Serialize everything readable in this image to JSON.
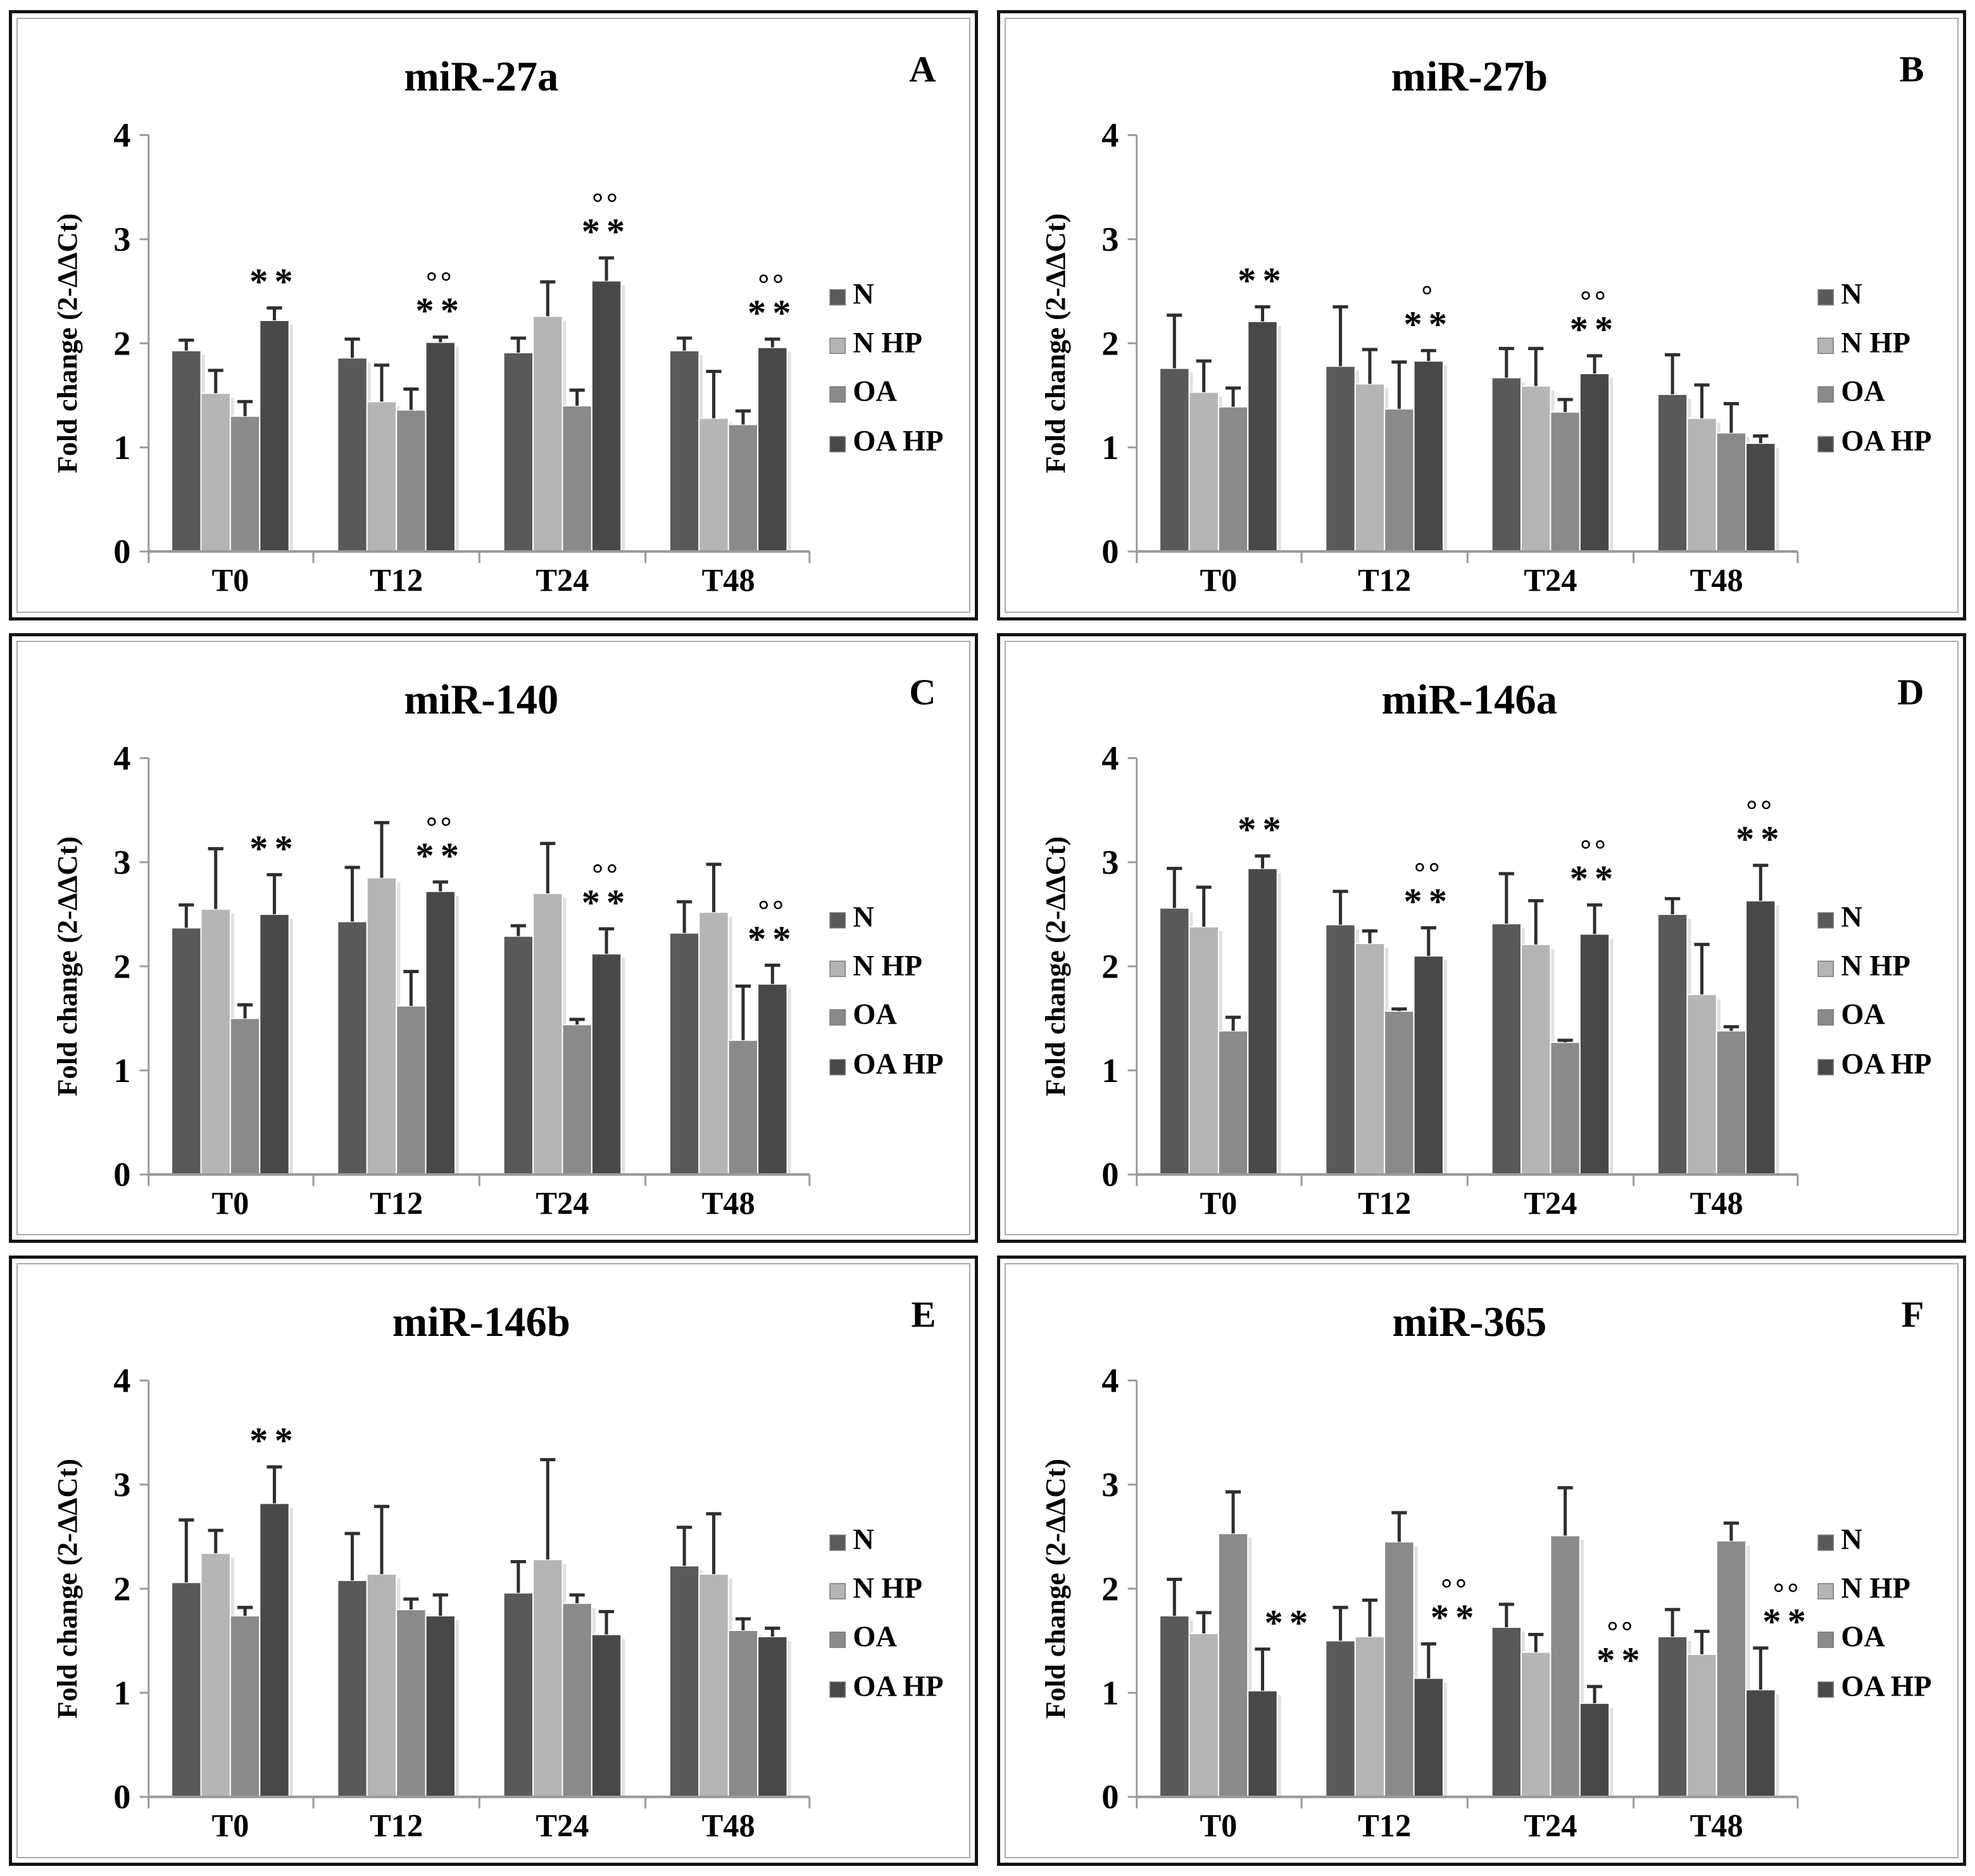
{
  "figure": {
    "ylabel": "Fold change (2-ΔΔCt)",
    "ylim": [
      0,
      4
    ],
    "yticks": [
      "0",
      "1",
      "2",
      "3",
      "4"
    ],
    "categories": [
      "T0",
      "T12",
      "T24",
      "T48"
    ],
    "legend": [
      "N",
      "N HP",
      "OA",
      "OA HP"
    ],
    "styles": {
      "series_colors": {
        "N": "#595959",
        "N HP": "#b5b5b5",
        "OA": "#8a8a8a",
        "OA HP": "#484848"
      },
      "error_color": "#2e2e2e",
      "axis_color": "#9b9b9b",
      "stars_color": "#858585",
      "circles_color": "#141414",
      "shadow_color": "#cdcdcd",
      "panel_background": "#ffffff"
    }
  },
  "chart_data": [
    {
      "type": "bar",
      "panel_letter": "A",
      "title": "miR-27a",
      "xlabel": "",
      "ylabel": "Fold change (2-ΔΔCt)",
      "ylim": [
        0,
        4
      ],
      "categories": [
        "T0",
        "T12",
        "T24",
        "T48"
      ],
      "legend_position": "right",
      "grid": false,
      "series": [
        {
          "name": "N",
          "color": "#595959",
          "values": [
            1.93,
            1.86,
            1.91,
            1.93
          ],
          "errors": [
            0.1,
            0.18,
            0.14,
            0.12
          ]
        },
        {
          "name": "N HP",
          "color": "#b5b5b5",
          "values": [
            1.52,
            1.44,
            2.26,
            1.28
          ],
          "errors": [
            0.22,
            0.35,
            0.33,
            0.45
          ]
        },
        {
          "name": "OA",
          "color": "#8a8a8a",
          "values": [
            1.3,
            1.36,
            1.4,
            1.22
          ],
          "errors": [
            0.14,
            0.2,
            0.15,
            0.13
          ]
        },
        {
          "name": "OA HP",
          "color": "#484848",
          "values": [
            2.22,
            2.01,
            2.6,
            1.96
          ],
          "errors": [
            0.12,
            0.05,
            0.22,
            0.08
          ]
        }
      ],
      "annotations": [
        {
          "category": "T0",
          "series": "OA HP",
          "circles": "",
          "stars": "**"
        },
        {
          "category": "T12",
          "series": "OA HP",
          "circles": "°°",
          "stars": "**"
        },
        {
          "category": "T24",
          "series": "OA HP",
          "circles": "°°",
          "stars": "**"
        },
        {
          "category": "T48",
          "series": "OA HP",
          "circles": "°°",
          "stars": "**"
        }
      ],
      "sig_dx": 0
    },
    {
      "type": "bar",
      "panel_letter": "B",
      "title": "miR-27b",
      "xlabel": "",
      "ylabel": "Fold change (2-ΔΔCt)",
      "ylim": [
        0,
        4
      ],
      "categories": [
        "T0",
        "T12",
        "T24",
        "T48"
      ],
      "legend_position": "right",
      "grid": false,
      "series": [
        {
          "name": "N",
          "color": "#595959",
          "values": [
            1.76,
            1.78,
            1.67,
            1.51
          ],
          "errors": [
            0.51,
            0.57,
            0.28,
            0.38
          ]
        },
        {
          "name": "N HP",
          "color": "#b5b5b5",
          "values": [
            1.53,
            1.61,
            1.59,
            1.28
          ],
          "errors": [
            0.3,
            0.33,
            0.36,
            0.32
          ]
        },
        {
          "name": "OA",
          "color": "#8a8a8a",
          "values": [
            1.39,
            1.37,
            1.34,
            1.14
          ],
          "errors": [
            0.18,
            0.45,
            0.12,
            0.28
          ]
        },
        {
          "name": "OA HP",
          "color": "#484848",
          "values": [
            2.21,
            1.83,
            1.71,
            1.04
          ],
          "errors": [
            0.14,
            0.1,
            0.17,
            0.07
          ]
        }
      ],
      "annotations": [
        {
          "category": "T0",
          "series": "OA HP",
          "circles": "",
          "stars": "**"
        },
        {
          "category": "T12",
          "series": "OA HP",
          "circles": "°",
          "stars": "**"
        },
        {
          "category": "T24",
          "series": "OA HP",
          "circles": "°°",
          "stars": "**"
        }
      ],
      "sig_dx": 0
    },
    {
      "type": "bar",
      "panel_letter": "C",
      "title": "miR-140",
      "xlabel": "",
      "ylabel": "Fold change (2-ΔΔCt)",
      "ylim": [
        0,
        4
      ],
      "categories": [
        "T0",
        "T12",
        "T24",
        "T48"
      ],
      "legend_position": "right",
      "grid": false,
      "series": [
        {
          "name": "N",
          "color": "#595959",
          "values": [
            2.37,
            2.43,
            2.29,
            2.32
          ],
          "errors": [
            0.22,
            0.52,
            0.1,
            0.3
          ]
        },
        {
          "name": "N HP",
          "color": "#b5b5b5",
          "values": [
            2.55,
            2.85,
            2.7,
            2.52
          ],
          "errors": [
            0.58,
            0.53,
            0.48,
            0.46
          ]
        },
        {
          "name": "OA",
          "color": "#8a8a8a",
          "values": [
            1.5,
            1.62,
            1.44,
            1.29
          ],
          "errors": [
            0.13,
            0.33,
            0.05,
            0.52
          ]
        },
        {
          "name": "OA HP",
          "color": "#484848",
          "values": [
            2.5,
            2.72,
            2.12,
            1.83
          ],
          "errors": [
            0.38,
            0.09,
            0.24,
            0.18
          ]
        }
      ],
      "annotations": [
        {
          "category": "T0",
          "series": "OA HP",
          "circles": "",
          "stars": "**"
        },
        {
          "category": "T12",
          "series": "OA HP",
          "circles": "°°",
          "stars": "**"
        },
        {
          "category": "T24",
          "series": "OA HP",
          "circles": "°°",
          "stars": "**"
        },
        {
          "category": "T48",
          "series": "OA HP",
          "circles": "°°",
          "stars": "**"
        }
      ],
      "sig_dx": 0
    },
    {
      "type": "bar",
      "panel_letter": "D",
      "title": "miR-146a",
      "xlabel": "",
      "ylabel": "Fold change (2-ΔΔCt)",
      "ylim": [
        0,
        4
      ],
      "categories": [
        "T0",
        "T12",
        "T24",
        "T48"
      ],
      "legend_position": "right",
      "grid": false,
      "series": [
        {
          "name": "N",
          "color": "#595959",
          "values": [
            2.56,
            2.4,
            2.41,
            2.5
          ],
          "errors": [
            0.38,
            0.32,
            0.48,
            0.15
          ]
        },
        {
          "name": "N HP",
          "color": "#b5b5b5",
          "values": [
            2.38,
            2.22,
            2.21,
            1.73
          ],
          "errors": [
            0.38,
            0.12,
            0.42,
            0.48
          ]
        },
        {
          "name": "OA",
          "color": "#8a8a8a",
          "values": [
            1.38,
            1.57,
            1.27,
            1.38
          ],
          "errors": [
            0.13,
            0.02,
            0.02,
            0.04
          ]
        },
        {
          "name": "OA HP",
          "color": "#484848",
          "values": [
            2.94,
            2.1,
            2.31,
            2.63
          ],
          "errors": [
            0.12,
            0.27,
            0.28,
            0.34
          ]
        }
      ],
      "annotations": [
        {
          "category": "T0",
          "series": "OA HP",
          "circles": "",
          "stars": "**"
        },
        {
          "category": "T12",
          "series": "OA HP",
          "circles": "°°",
          "stars": "**"
        },
        {
          "category": "T24",
          "series": "OA HP",
          "circles": "°°",
          "stars": "**"
        },
        {
          "category": "T48",
          "series": "OA HP",
          "circles": "°°",
          "stars": "**"
        }
      ],
      "sig_dx": 0
    },
    {
      "type": "bar",
      "panel_letter": "E",
      "title": "miR-146b",
      "xlabel": "",
      "ylabel": "Fold change (2-ΔΔCt)",
      "ylim": [
        0,
        4
      ],
      "categories": [
        "T0",
        "T12",
        "T24",
        "T48"
      ],
      "legend_position": "right",
      "grid": false,
      "series": [
        {
          "name": "N",
          "color": "#595959",
          "values": [
            2.06,
            2.08,
            1.96,
            2.22
          ],
          "errors": [
            0.6,
            0.45,
            0.3,
            0.37
          ]
        },
        {
          "name": "N HP",
          "color": "#b5b5b5",
          "values": [
            2.34,
            2.14,
            2.28,
            2.14
          ],
          "errors": [
            0.22,
            0.65,
            0.96,
            0.58
          ]
        },
        {
          "name": "OA",
          "color": "#8a8a8a",
          "values": [
            1.74,
            1.8,
            1.86,
            1.6
          ],
          "errors": [
            0.08,
            0.1,
            0.08,
            0.11
          ]
        },
        {
          "name": "OA HP",
          "color": "#484848",
          "values": [
            2.82,
            1.74,
            1.56,
            1.54
          ],
          "errors": [
            0.35,
            0.2,
            0.22,
            0.08
          ]
        }
      ],
      "annotations": [
        {
          "category": "T0",
          "series": "OA HP",
          "circles": "",
          "stars": "**"
        }
      ],
      "sig_dx": 0
    },
    {
      "type": "bar",
      "panel_letter": "F",
      "title": "miR-365",
      "xlabel": "",
      "ylabel": "Fold change (2-ΔΔCt)",
      "ylim": [
        0,
        4
      ],
      "categories": [
        "T0",
        "T12",
        "T24",
        "T48"
      ],
      "legend_position": "right",
      "grid": false,
      "series": [
        {
          "name": "N",
          "color": "#595959",
          "values": [
            1.74,
            1.5,
            1.63,
            1.54
          ],
          "errors": [
            0.35,
            0.32,
            0.22,
            0.26
          ]
        },
        {
          "name": "N HP",
          "color": "#b5b5b5",
          "values": [
            1.57,
            1.54,
            1.39,
            1.37
          ],
          "errors": [
            0.2,
            0.35,
            0.17,
            0.22
          ]
        },
        {
          "name": "OA",
          "color": "#8a8a8a",
          "values": [
            2.53,
            2.45,
            2.51,
            2.46
          ],
          "errors": [
            0.4,
            0.28,
            0.46,
            0.17
          ]
        },
        {
          "name": "OA HP",
          "color": "#484848",
          "values": [
            1.02,
            1.14,
            0.9,
            1.03
          ],
          "errors": [
            0.4,
            0.33,
            0.16,
            0.4
          ]
        }
      ],
      "annotations": [
        {
          "category": "T0",
          "series": "OA HP",
          "circles": "",
          "stars": "**"
        },
        {
          "category": "T12",
          "series": "OA HP",
          "circles": "°°",
          "stars": "**"
        },
        {
          "category": "T24",
          "series": "OA HP",
          "circles": "°°",
          "stars": "**"
        },
        {
          "category": "T48",
          "series": "OA HP",
          "circles": "°°",
          "stars": "**"
        }
      ],
      "sig_dx": 42
    }
  ]
}
